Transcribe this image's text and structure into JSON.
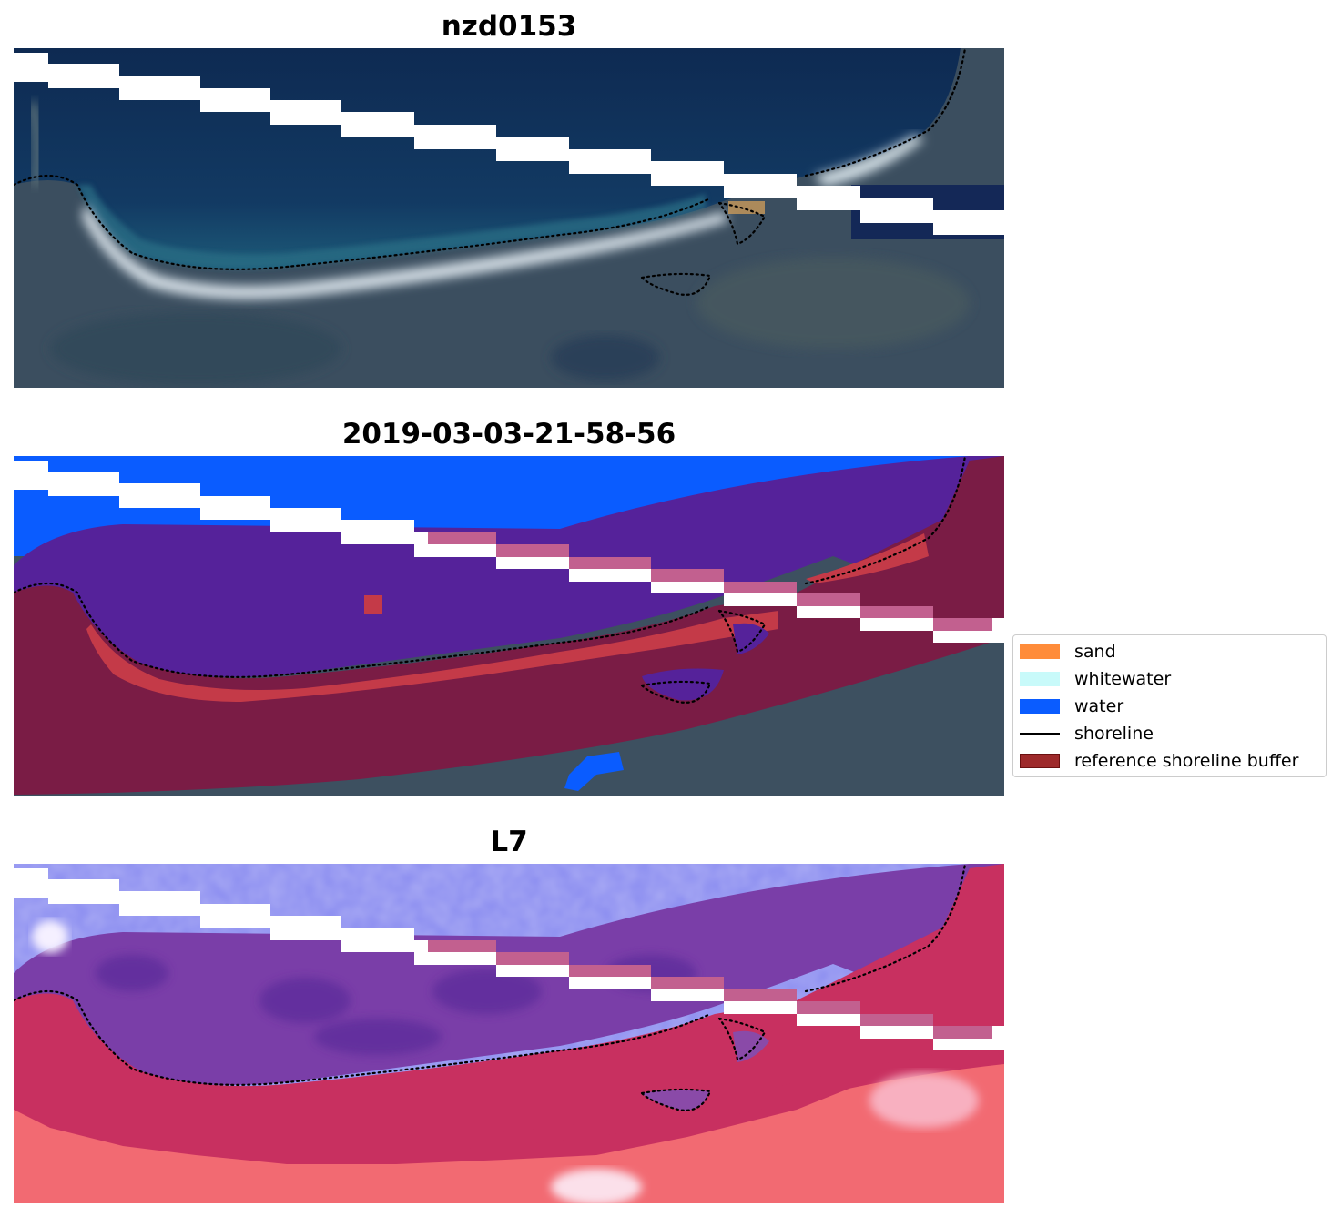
{
  "panels": [
    {
      "title": "nzd0153",
      "kind": "rgb"
    },
    {
      "title": "2019-03-03-21-58-56",
      "kind": "classified"
    },
    {
      "title": "L7",
      "kind": "mndwi"
    }
  ],
  "legend": {
    "items": [
      {
        "label": "sand",
        "color": "#ff8c3a",
        "kind": "patch"
      },
      {
        "label": "whitewater",
        "color": "#c8fafa",
        "kind": "patch"
      },
      {
        "label": "water",
        "color": "#0a5cff",
        "kind": "patch"
      },
      {
        "label": "shoreline",
        "color": "#000000",
        "kind": "line"
      },
      {
        "label": "reference shoreline buffer",
        "color": "#9e2a2b",
        "kind": "patch"
      }
    ]
  },
  "colors": {
    "ocean": "#0f2a52",
    "land": "#3a4d5c",
    "sand_beach": "#e6eef5",
    "classified_ocean_water": "#0a5cff",
    "classified_surf_water": "#55229a",
    "classified_buffer": "#7a1c45",
    "classified_sand": "#c43a48",
    "mndwi_water": "#8a8cf0",
    "mndwi_land": "#c83060",
    "mndwi_bright_land": "#f26a72"
  }
}
